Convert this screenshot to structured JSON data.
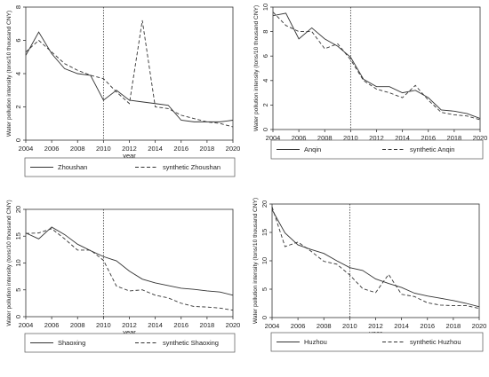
{
  "chart_data": [
    {
      "type": "line",
      "ylabel": "Water pollution intensity (tons/10 thousand CNY)",
      "xlabel": "year",
      "xlim": [
        2004,
        2020
      ],
      "ylim": [
        0,
        8
      ],
      "xticks": [
        2004,
        2006,
        2008,
        2010,
        2012,
        2014,
        2016,
        2018,
        2020
      ],
      "yticks": [
        0,
        2,
        4,
        6,
        8
      ],
      "vline": 2010,
      "legend_position": "bottom",
      "x": [
        2004,
        2005,
        2006,
        2007,
        2008,
        2009,
        2010,
        2011,
        2012,
        2013,
        2014,
        2015,
        2016,
        2017,
        2018,
        2019,
        2020
      ],
      "series": [
        {
          "name": "Zhoushan",
          "style": "solid",
          "values": [
            5.1,
            6.5,
            5.2,
            4.3,
            4.0,
            3.9,
            2.4,
            3.0,
            2.4,
            2.3,
            2.2,
            2.1,
            1.2,
            1.1,
            1.1,
            1.1,
            1.2
          ]
        },
        {
          "name": "synthetic Zhoushan",
          "style": "dashed",
          "values": [
            5.3,
            6.0,
            5.3,
            4.6,
            4.2,
            3.9,
            3.7,
            2.9,
            2.2,
            7.2,
            2.0,
            1.9,
            1.5,
            1.3,
            1.1,
            1.0,
            0.8
          ]
        }
      ]
    },
    {
      "type": "line",
      "ylabel": "Water pollution intensity (tons/10 thousand CNY)",
      "xlabel": "year",
      "xlim": [
        2004,
        2020
      ],
      "ylim": [
        0,
        10
      ],
      "xticks": [
        2004,
        2006,
        2008,
        2010,
        2012,
        2014,
        2016,
        2018,
        2020
      ],
      "yticks": [
        0,
        2,
        4,
        6,
        8,
        10
      ],
      "vline": 2010,
      "legend_position": "bottom",
      "x": [
        2004,
        2005,
        2006,
        2007,
        2008,
        2009,
        2010,
        2011,
        2012,
        2013,
        2014,
        2015,
        2016,
        2017,
        2018,
        2019,
        2020
      ],
      "series": [
        {
          "name": "Anqin",
          "style": "solid",
          "values": [
            9.3,
            9.5,
            7.4,
            8.3,
            7.4,
            6.8,
            5.9,
            4.1,
            3.5,
            3.5,
            3.0,
            3.2,
            2.6,
            1.6,
            1.5,
            1.3,
            0.9
          ]
        },
        {
          "name": "synthetic Anqin",
          "style": "dashed",
          "values": [
            9.6,
            8.5,
            8.0,
            8.0,
            6.6,
            7.0,
            5.7,
            4.0,
            3.3,
            3.0,
            2.6,
            3.6,
            2.4,
            1.4,
            1.2,
            1.1,
            0.8
          ]
        }
      ]
    },
    {
      "type": "line",
      "ylabel": "Water pollution intensity (tons/10 thousand CNY)",
      "xlabel": "year",
      "xlim": [
        2004,
        2020
      ],
      "ylim": [
        0,
        20
      ],
      "xticks": [
        2004,
        2006,
        2008,
        2010,
        2012,
        2014,
        2016,
        2018,
        2020
      ],
      "yticks": [
        0,
        5,
        10,
        15,
        20
      ],
      "vline": 2010,
      "legend_position": "bottom",
      "x": [
        2004,
        2005,
        2006,
        2007,
        2008,
        2009,
        2010,
        2011,
        2012,
        2013,
        2014,
        2015,
        2016,
        2017,
        2018,
        2019,
        2020
      ],
      "series": [
        {
          "name": "Shaoxing",
          "style": "solid",
          "values": [
            15.6,
            14.5,
            16.7,
            15.3,
            13.5,
            12.3,
            11.2,
            10.4,
            8.5,
            7.0,
            6.3,
            5.8,
            5.3,
            5.1,
            4.8,
            4.6,
            4.0
          ]
        },
        {
          "name": "synthetic Shaoxing",
          "style": "dashed",
          "values": [
            15.5,
            15.6,
            16.4,
            14.5,
            12.4,
            12.4,
            10.5,
            5.7,
            4.8,
            5.0,
            4.0,
            3.5,
            2.5,
            1.9,
            1.8,
            1.6,
            1.2
          ]
        }
      ]
    },
    {
      "type": "line",
      "ylabel": "Water pollution intensity (tons/10 thousand CNY)",
      "xlabel": "year",
      "xlim": [
        2004,
        2020
      ],
      "ylim": [
        0,
        20
      ],
      "xticks": [
        2004,
        2006,
        2008,
        2010,
        2012,
        2014,
        2016,
        2018,
        2020
      ],
      "yticks": [
        0,
        5,
        10,
        15,
        20
      ],
      "vline": 2010,
      "legend_position": "bottom",
      "x": [
        2004,
        2005,
        2006,
        2007,
        2008,
        2009,
        2010,
        2011,
        2012,
        2013,
        2014,
        2015,
        2016,
        2017,
        2018,
        2019,
        2020
      ],
      "series": [
        {
          "name": "Huzhou",
          "style": "solid",
          "values": [
            19.0,
            14.9,
            12.8,
            12.0,
            11.3,
            10.0,
            8.8,
            8.3,
            6.8,
            6.0,
            5.3,
            4.3,
            3.8,
            3.4,
            3.0,
            2.5,
            1.9
          ]
        },
        {
          "name": "synthetic Huzhou",
          "style": "dashed",
          "values": [
            19.5,
            12.5,
            13.3,
            11.7,
            9.9,
            9.4,
            7.5,
            5.1,
            4.4,
            7.6,
            4.1,
            3.7,
            2.6,
            2.2,
            2.1,
            2.1,
            1.6
          ]
        }
      ]
    }
  ]
}
